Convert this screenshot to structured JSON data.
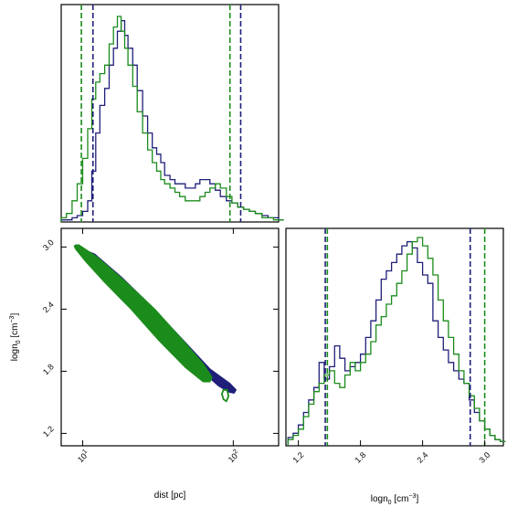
{
  "colors": {
    "blue": "#1f1f7a",
    "green": "#1b8c1b"
  },
  "chart_data": [
    {
      "panel": "dist-histogram",
      "type": "area",
      "x_scale": "log",
      "xlim": [
        7.2,
        200
      ],
      "series": [
        {
          "color": "#1f1f7a",
          "x": [
            7.2,
            7.8,
            8.5,
            9.2,
            10.0,
            10.8,
            11.5,
            12.2,
            13.0,
            14.0,
            15.0,
            16.0,
            17.0,
            18.0,
            19.0,
            20.0,
            21.5,
            23.0,
            25.0,
            27.0,
            29.0,
            31.0,
            33.0,
            35.0,
            38.0,
            41.0,
            44.0,
            48.0,
            52.0,
            56.0,
            60.0,
            65.0,
            70.0,
            76.0,
            82.0,
            90.0,
            98.0,
            107.0,
            117.0,
            128.0,
            140.0,
            155.0,
            170.0,
            185.0,
            200.0
          ],
          "values": [
            0.01,
            0.01,
            0.02,
            0.03,
            0.05,
            0.1,
            0.24,
            0.42,
            0.55,
            0.63,
            0.74,
            0.82,
            0.9,
            0.95,
            0.88,
            0.82,
            0.74,
            0.62,
            0.5,
            0.42,
            0.35,
            0.32,
            0.28,
            0.22,
            0.2,
            0.18,
            0.18,
            0.16,
            0.16,
            0.18,
            0.2,
            0.2,
            0.18,
            0.15,
            0.12,
            0.1,
            0.09,
            0.07,
            0.06,
            0.05,
            0.04,
            0.03,
            0.02,
            0.02,
            0.01
          ]
        },
        {
          "color": "#1b8c1b",
          "x": [
            7.2,
            7.8,
            8.5,
            9.2,
            10.0,
            10.8,
            11.5,
            12.2,
            13.0,
            14.0,
            15.0,
            16.0,
            17.0,
            18.0,
            19.0,
            20.0,
            21.5,
            23.0,
            25.0,
            27.0,
            29.0,
            31.0,
            33.0,
            35.0,
            38.0,
            41.0,
            44.0,
            48.0,
            52.0,
            56.0,
            60.0,
            65.0,
            70.0,
            76.0,
            82.0,
            90.0,
            98.0,
            107.0,
            117.0,
            128.0,
            140.0,
            155.0,
            170.0,
            185.0,
            200.0
          ],
          "values": [
            0.02,
            0.04,
            0.1,
            0.18,
            0.3,
            0.44,
            0.58,
            0.66,
            0.7,
            0.74,
            0.84,
            0.92,
            0.97,
            0.9,
            0.82,
            0.74,
            0.64,
            0.52,
            0.42,
            0.34,
            0.28,
            0.24,
            0.2,
            0.18,
            0.16,
            0.14,
            0.12,
            0.1,
            0.1,
            0.1,
            0.12,
            0.14,
            0.16,
            0.18,
            0.16,
            0.12,
            0.09,
            0.07,
            0.06,
            0.05,
            0.04,
            0.02,
            0.02,
            0.01,
            0.01
          ]
        }
      ],
      "vlines": [
        {
          "x": 9.8,
          "color": "#1b8c1b"
        },
        {
          "x": 11.7,
          "color": "#1f1f7a"
        },
        {
          "x": 95.0,
          "color": "#1b8c1b"
        },
        {
          "x": 112.0,
          "color": "#1f1f7a"
        }
      ]
    },
    {
      "panel": "dist-vs-logn0",
      "type": "scatter",
      "x_scale": "log",
      "xlim": [
        7.2,
        200
      ],
      "ylim": [
        1.08,
        3.18
      ],
      "xticks": [
        {
          "value": 10,
          "base": "10",
          "exp": "1"
        },
        {
          "value": 100,
          "base": "10",
          "exp": "2"
        }
      ],
      "yticks": [
        "1.2",
        "1.8",
        "2.4",
        "3.0"
      ],
      "xlabel": "dist [pc]",
      "ylabel": {
        "main": "logn",
        "sub": "0",
        "unit": " [cm",
        "exp": "−3",
        "close": "]"
      },
      "series": [
        {
          "color": "#1f1f7a",
          "role": "outer contour",
          "x": [
            9.0,
            9.5,
            12.0,
            18.0,
            28.0,
            45.0,
            70.0,
            95.0,
            104.0,
            101.0,
            94.0,
            80.0,
            58.0,
            38.0,
            25.0,
            16.0,
            11.5,
            9.4
          ],
          "y": [
            3.02,
            2.99,
            2.93,
            2.71,
            2.44,
            2.12,
            1.82,
            1.68,
            1.62,
            1.59,
            1.6,
            1.66,
            1.84,
            2.1,
            2.4,
            2.65,
            2.84,
            2.96
          ]
        },
        {
          "color": "#1b8c1b",
          "role": "outer contour",
          "x": [
            8.8,
            9.4,
            12.5,
            19.0,
            30.0,
            46.0,
            64.0,
            72.0,
            70.0,
            63.0,
            48.0,
            32.0,
            21.0,
            14.0,
            10.5,
            9.0
          ],
          "y": [
            3.01,
            3.02,
            2.9,
            2.67,
            2.4,
            2.1,
            1.86,
            1.74,
            1.7,
            1.7,
            1.84,
            2.1,
            2.4,
            2.66,
            2.86,
            2.98
          ]
        },
        {
          "color": "#1b8c1b",
          "role": "inner contour",
          "x": [
            10.0,
            12.0,
            18.0,
            28.0,
            42.0,
            56.0,
            60.0,
            52.0,
            38.0,
            26.0,
            17.0,
            12.0
          ],
          "y": [
            2.95,
            2.86,
            2.66,
            2.4,
            2.12,
            1.9,
            1.84,
            1.9,
            2.12,
            2.38,
            2.63,
            2.85
          ]
        },
        {
          "color": "#1b8c1b",
          "role": "island contour",
          "x": [
            86.0,
            91.0,
            93.0,
            90.0,
            86.0,
            84.0
          ],
          "y": [
            1.62,
            1.62,
            1.56,
            1.51,
            1.53,
            1.58
          ]
        }
      ]
    },
    {
      "panel": "logn0-histogram",
      "type": "area",
      "xlim": [
        1.08,
        3.18
      ],
      "xticks": [
        "1.2",
        "1.8",
        "2.4",
        "3.0"
      ],
      "xlabel": {
        "main": "logn",
        "sub": "0",
        "unit": " [cm",
        "exp": "−3",
        "close": "]"
      },
      "series": [
        {
          "color": "#1f1f7a",
          "x": [
            1.1,
            1.15,
            1.2,
            1.25,
            1.3,
            1.35,
            1.4,
            1.45,
            1.5,
            1.55,
            1.6,
            1.65,
            1.7,
            1.75,
            1.8,
            1.85,
            1.9,
            1.95,
            2.0,
            2.05,
            2.1,
            2.15,
            2.2,
            2.25,
            2.3,
            2.35,
            2.4,
            2.45,
            2.5,
            2.55,
            2.6,
            2.65,
            2.7,
            2.75,
            2.8,
            2.85,
            2.9,
            2.95,
            3.0,
            3.05,
            3.1,
            3.15
          ],
          "values": [
            0.04,
            0.06,
            0.1,
            0.16,
            0.22,
            0.28,
            0.4,
            0.32,
            0.38,
            0.48,
            0.42,
            0.36,
            0.38,
            0.4,
            0.44,
            0.52,
            0.6,
            0.7,
            0.8,
            0.84,
            0.88,
            0.92,
            0.96,
            0.98,
            0.95,
            0.88,
            0.82,
            0.78,
            0.6,
            0.52,
            0.46,
            0.4,
            0.36,
            0.32,
            0.3,
            0.22,
            0.16,
            0.12,
            0.08,
            0.05,
            0.03,
            0.02
          ]
        },
        {
          "color": "#1b8c1b",
          "x": [
            1.1,
            1.15,
            1.2,
            1.25,
            1.3,
            1.35,
            1.4,
            1.45,
            1.5,
            1.55,
            1.6,
            1.65,
            1.7,
            1.75,
            1.8,
            1.85,
            1.9,
            1.95,
            2.0,
            2.05,
            2.1,
            2.15,
            2.2,
            2.25,
            2.3,
            2.35,
            2.4,
            2.45,
            2.5,
            2.55,
            2.6,
            2.65,
            2.7,
            2.75,
            2.8,
            2.85,
            2.9,
            2.95,
            3.0,
            3.05,
            3.1,
            3.15
          ],
          "values": [
            0.03,
            0.05,
            0.08,
            0.14,
            0.2,
            0.26,
            0.3,
            0.34,
            0.36,
            0.3,
            0.28,
            0.34,
            0.4,
            0.36,
            0.4,
            0.44,
            0.5,
            0.58,
            0.62,
            0.68,
            0.72,
            0.78,
            0.84,
            0.92,
            0.98,
            1.0,
            0.96,
            0.9,
            0.82,
            0.7,
            0.6,
            0.52,
            0.44,
            0.36,
            0.3,
            0.24,
            0.18,
            0.12,
            0.08,
            0.05,
            0.03,
            0.02
          ]
        }
      ],
      "vlines": [
        {
          "x": 1.46,
          "color": "#1f1f7a"
        },
        {
          "x": 1.48,
          "color": "#1b8c1b"
        },
        {
          "x": 2.86,
          "color": "#1f1f7a"
        },
        {
          "x": 3.0,
          "color": "#1b8c1b"
        }
      ]
    }
  ]
}
